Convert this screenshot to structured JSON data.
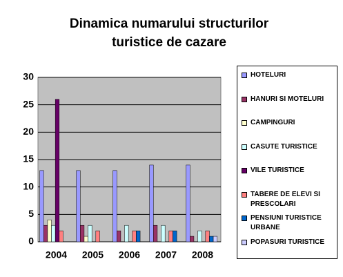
{
  "chart_data": {
    "type": "bar",
    "title": [
      "Dinamica numarului structurilor",
      "turistice de cazare"
    ],
    "categories": [
      "2004",
      "2005",
      "2006",
      "2007",
      "2008"
    ],
    "ylim": [
      0,
      30
    ],
    "yticks": [
      0,
      5,
      10,
      15,
      20,
      25,
      30
    ],
    "grid": true,
    "series": [
      {
        "name": "HOTELURI",
        "color": "#9999ff",
        "values": [
          13,
          13,
          13,
          14,
          14
        ]
      },
      {
        "name": "HANURI SI MOTELURI",
        "color": "#993366",
        "values": [
          3,
          3,
          2,
          3,
          1
        ]
      },
      {
        "name": "CAMPINGURI",
        "color": "#ffffcc",
        "values": [
          4,
          1,
          0,
          0,
          0
        ]
      },
      {
        "name": "CASUTE TURISTICE",
        "color": "#ccffff",
        "values": [
          3,
          3,
          3,
          3,
          2
        ]
      },
      {
        "name": "VILE TURISTICE",
        "color": "#660066",
        "values": [
          26,
          0,
          0,
          0,
          0
        ]
      },
      {
        "name": "TABERE DE ELEVI SI PRESCOLARI",
        "color": "#ff8080",
        "values": [
          2,
          2,
          2,
          2,
          2
        ]
      },
      {
        "name": "PENSIUNI TURISTICE URBANE",
        "color": "#0066cc",
        "values": [
          0,
          0,
          2,
          2,
          1
        ]
      },
      {
        "name": "POPASURI TURISTICE",
        "color": "#ccccff",
        "values": [
          0,
          0,
          0,
          0,
          1
        ]
      }
    ]
  }
}
